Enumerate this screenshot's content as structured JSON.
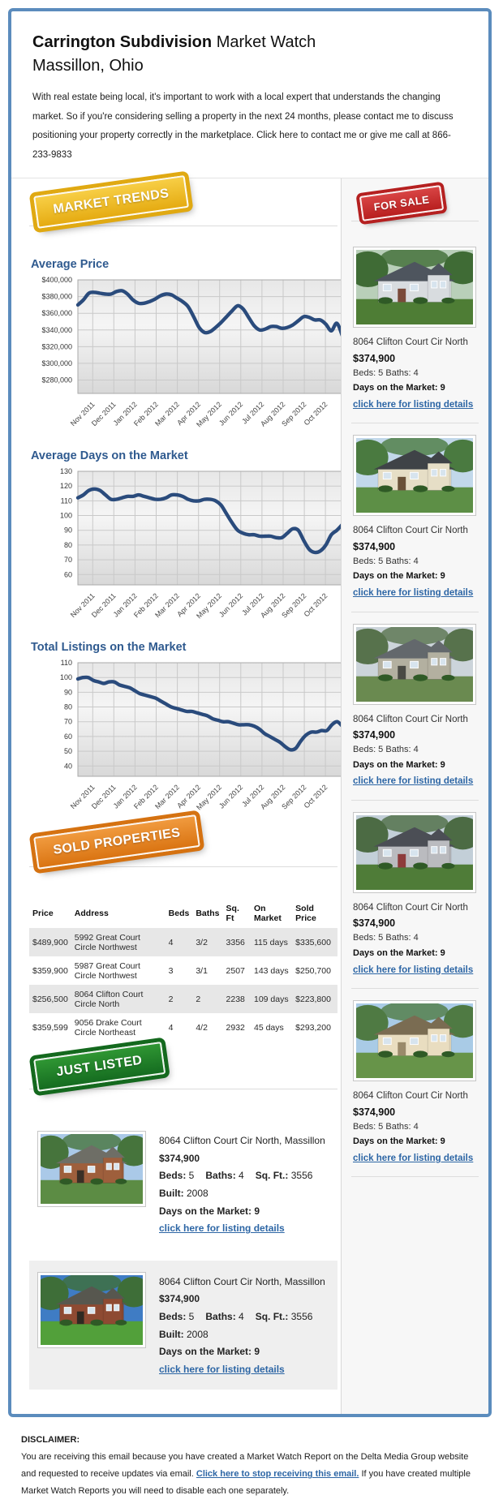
{
  "header": {
    "title_bold": "Carrington Subdivision",
    "title_rest": "Market Watch",
    "subtitle": "Massillon, Ohio",
    "intro": "With real estate being local, it's important to work with a local expert that understands the changing market. So if you're considering selling a property in the next 24 months, please contact me to discuss positioning your property correctly in the marketplace. Click here to contact me or give me call at 866-233-9833"
  },
  "badges": {
    "market_trends": "MARKET TRENDS",
    "for_sale": "FOR SALE",
    "sold_properties": "SOLD PROPERTIES",
    "just_listed": "JUST LISTED"
  },
  "colors": {
    "frame_blue": "#5b8cbd",
    "heading_blue": "#2f5a8f",
    "link_blue": "#2d66a5",
    "chart_line_navy": "#2a4b7c",
    "badge_gold": "#e5ab12",
    "badge_red": "#b81f1f",
    "badge_orange": "#da7412",
    "badge_green": "#156c20"
  },
  "chart_data": [
    {
      "type": "line",
      "title": "Average Price",
      "x_labels": [
        "Nov 2011",
        "Dec 2011",
        "Jan 2012",
        "Feb 2012",
        "Mar 2012",
        "Apr 2012",
        "May 2012",
        "Jun 2012",
        "Jul 2012",
        "Aug 2012",
        "Sep 2012",
        "Oct 2012"
      ],
      "values": [
        370000,
        376000,
        384000,
        385000,
        384000,
        383000,
        383000,
        386000,
        387000,
        383000,
        376000,
        372000,
        372000,
        374000,
        377000,
        381000,
        383000,
        382000,
        378000,
        374000,
        368000,
        356000,
        343000,
        337000,
        338000,
        343000,
        349000,
        356000,
        363000,
        369000,
        365000,
        355000,
        345000,
        340000,
        341000,
        344000,
        344000,
        342000,
        343000,
        346000,
        351000,
        356000,
        355000,
        352000,
        352000,
        347000,
        339000,
        348000,
        333000
      ],
      "ylim": [
        264000,
        400000
      ],
      "yticks": [
        400000,
        380000,
        360000,
        340000,
        320000,
        300000,
        280000
      ],
      "ytick_labels": [
        "$400,000",
        "$380,000",
        "$360,000",
        "$340,000",
        "$320,000",
        "$300,000",
        "$280,000"
      ],
      "grid": true,
      "legend": "none"
    },
    {
      "type": "line",
      "title": "Average Days on the Market",
      "x_labels": [
        "Nov 2011",
        "Dec 2011",
        "Jan 2012",
        "Feb 2012",
        "Mar 2012",
        "Apr 2012",
        "May 2012",
        "Jun 2012",
        "Jul 2012",
        "Aug 2012",
        "Sep 2012",
        "Oct 2012"
      ],
      "values": [
        112,
        114,
        117,
        118,
        117,
        114,
        111,
        111,
        112,
        113,
        113,
        114,
        113,
        112,
        111,
        111,
        112,
        114,
        114,
        113,
        111,
        110,
        110,
        111,
        111,
        110,
        107,
        101,
        95,
        90,
        88,
        87,
        87,
        86,
        86,
        86,
        85,
        85,
        88,
        91,
        90,
        83,
        77,
        75,
        76,
        80,
        87,
        90,
        94
      ],
      "ylim": [
        53,
        130
      ],
      "yticks": [
        130,
        120,
        110,
        100,
        90,
        80,
        70,
        60
      ],
      "ytick_labels": [
        "130",
        "120",
        "110",
        "100",
        "90",
        "80",
        "70",
        "60"
      ],
      "grid": true,
      "legend": "none"
    },
    {
      "type": "line",
      "title": "Total Listings on the Market",
      "x_labels": [
        "Nov 2011",
        "Dec 2011",
        "Jan 2012",
        "Feb 2012",
        "Mar 2012",
        "Apr 2012",
        "May 2012",
        "Jun 2012",
        "Jul 2012",
        "Aug 2012",
        "Sep 2012",
        "Oct 2012"
      ],
      "values": [
        99,
        100,
        100,
        98,
        97,
        96,
        97,
        97,
        95,
        94,
        93,
        91,
        89,
        88,
        87,
        86,
        84,
        82,
        80,
        79,
        78,
        77,
        77,
        76,
        75,
        74,
        72,
        71,
        70,
        70,
        69,
        68,
        68,
        68,
        67,
        65,
        62,
        60,
        58,
        56,
        53,
        51,
        52,
        57,
        61,
        63,
        63,
        64,
        64,
        68,
        70,
        67
      ],
      "ylim": [
        33,
        110
      ],
      "yticks": [
        110,
        100,
        90,
        80,
        70,
        60,
        50,
        40
      ],
      "ytick_labels": [
        "110",
        "100",
        "90",
        "80",
        "70",
        "60",
        "50",
        "40"
      ],
      "grid": true,
      "legend": "none"
    }
  ],
  "sidebar": {
    "listings": [
      {
        "address": "8064 Clifton Court Cir North",
        "price": "$374,900",
        "beds_baths": "Beds: 5 Baths: 4",
        "days": "Days on the Market: 9",
        "link": "click here for listing details"
      },
      {
        "address": "8064 Clifton Court Cir North",
        "price": "$374,900",
        "beds_baths": "Beds: 5 Baths: 4",
        "days": "Days on the Market: 9",
        "link": "click here for listing details"
      },
      {
        "address": "8064 Clifton Court Cir North",
        "price": "$374,900",
        "beds_baths": "Beds: 5 Baths: 4",
        "days": "Days on the Market: 9",
        "link": "click here for listing details"
      },
      {
        "address": "8064 Clifton Court Cir North",
        "price": "$374,900",
        "beds_baths": "Beds: 5 Baths: 4",
        "days": "Days on the Market: 9",
        "link": "click here for listing details"
      },
      {
        "address": "8064 Clifton Court Cir North",
        "price": "$374,900",
        "beds_baths": "Beds: 5 Baths: 4",
        "days": "Days on the Market: 9",
        "link": "click here for listing details"
      }
    ]
  },
  "sold_table": {
    "headers": [
      "Price",
      "Address",
      "Beds",
      "Baths",
      "Sq. Ft",
      "On Market",
      "Sold Price"
    ],
    "rows": [
      [
        "$489,900",
        "5992 Great Court Circle Northwest",
        "4",
        "3/2",
        "3356",
        "115 days",
        "$335,600"
      ],
      [
        "$359,900",
        "5987 Great Court Circle Northwest",
        "3",
        "3/1",
        "2507",
        "143 days",
        "$250,700"
      ],
      [
        "$256,500",
        "8064 Clifton Court Circle North",
        "2",
        "2",
        "2238",
        "109 days",
        "$223,800"
      ],
      [
        "$359,599",
        "9056 Drake Court Circle Northeast",
        "4",
        "4/2",
        "2932",
        "45 days",
        "$293,200"
      ]
    ]
  },
  "just_listed": {
    "items": [
      {
        "address": "8064 Clifton Court Cir North, Massillon",
        "price": "$374,900",
        "specs": [
          [
            "Beds:",
            "5"
          ],
          [
            "Baths:",
            "4"
          ],
          [
            "Sq. Ft.:",
            "3556"
          ],
          [
            "Built:",
            "2008"
          ]
        ],
        "days": "Days on the Market: 9",
        "link": "click here for listing details"
      },
      {
        "address": "8064 Clifton Court Cir North, Massillon",
        "price": "$374,900",
        "specs": [
          [
            "Beds:",
            "5"
          ],
          [
            "Baths:",
            "4"
          ],
          [
            "Sq. Ft.:",
            "3556"
          ],
          [
            "Built:",
            "2008"
          ]
        ],
        "days": "Days on the Market: 9",
        "link": "click here for listing details"
      }
    ]
  },
  "photos": {
    "sidebar": [
      {
        "sky": "#b9cfb9",
        "tree": "#3f6b35",
        "wall": "#d8dcdf",
        "roof": "#4e555e",
        "grass": "#4e7d35",
        "door": "#7a4a3a"
      },
      {
        "sky": "#c2d8ea",
        "tree": "#4a7a40",
        "wall": "#e6dec6",
        "roof": "#3f4347",
        "grass": "#5d8f46",
        "door": "#6a5138"
      },
      {
        "sky": "#ccd4da",
        "tree": "#57724c",
        "wall": "#b3b0a0",
        "roof": "#63686c",
        "grass": "#6a8a50",
        "door": "#4a4a44"
      },
      {
        "sky": "#c3cfd8",
        "tree": "#4c6b44",
        "wall": "#babbbf",
        "roof": "#4b4e55",
        "grass": "#4f7c38",
        "door": "#8e3b3b"
      },
      {
        "sky": "#a9cbe6",
        "tree": "#4f7a43",
        "wall": "#e9ddc0",
        "roof": "#7a6c52",
        "grass": "#679449",
        "door": "#9a8a6a"
      }
    ],
    "just_listed": [
      {
        "sky": "#aac9e8",
        "tree": "#46743c",
        "wall": "#9e5f3c",
        "roof": "#6e6e66",
        "grass": "#5c8c44",
        "door": "#3a2f26"
      },
      {
        "sky": "#3f7cc4",
        "tree": "#3e6e38",
        "wall": "#8e4a32",
        "roof": "#57574f",
        "grass": "#52a03a",
        "door": "#2f2a22"
      }
    ]
  },
  "disclaimer": {
    "heading": "DISCLAIMER:",
    "text_before": "You are receiving this email because you have created a Market Watch Report on the Delta Media Group website and requested to receive updates via email.",
    "link": "Click here to stop receiving this email.",
    "text_after": "If you have created multiple Market Watch Reports you will need to disable each one separately."
  }
}
